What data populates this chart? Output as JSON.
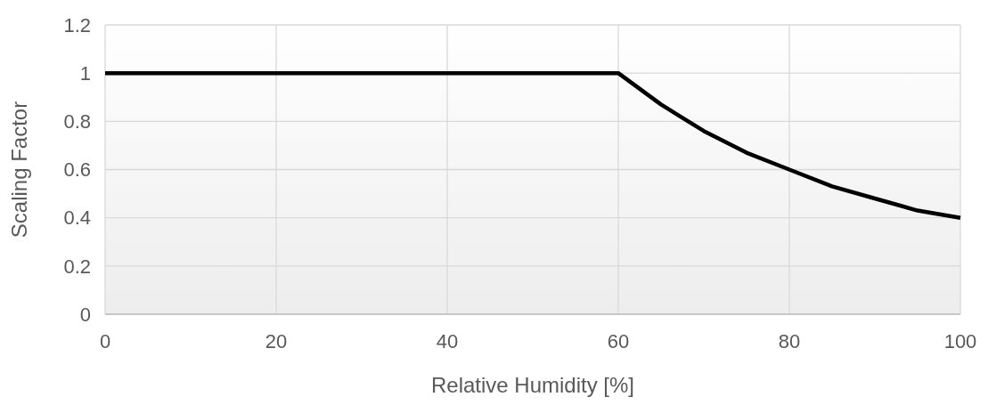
{
  "chart_data": {
    "type": "line",
    "xlabel": "Relative Humidity [%]",
    "ylabel": "Scaling Factor",
    "x": [
      0,
      60,
      65,
      70,
      75,
      80,
      85,
      90,
      95,
      100
    ],
    "series": [
      {
        "color": "#000000",
        "values": [
          1,
          1,
          0.87,
          0.76,
          0.67,
          0.6,
          0.53,
          0.48,
          0.43,
          0.4
        ]
      }
    ],
    "xlim": [
      0,
      100
    ],
    "xticks": [
      0,
      20,
      40,
      60,
      80,
      100
    ],
    "ylim": [
      0,
      1.2
    ],
    "yticks": [
      0,
      0.2,
      0.4,
      0.6,
      0.8,
      1,
      1.2
    ],
    "grid": true,
    "marker": "none",
    "line_style": "solid"
  }
}
